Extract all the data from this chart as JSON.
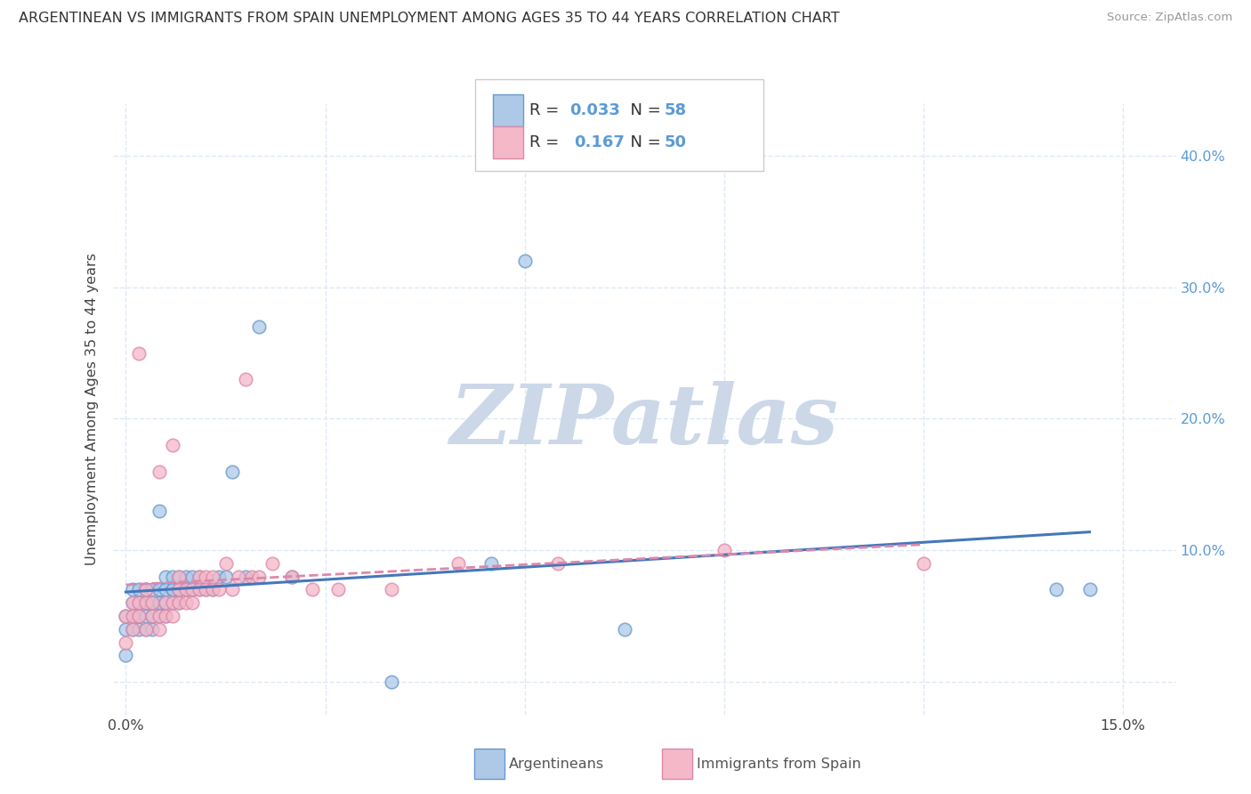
{
  "title": "ARGENTINEAN VS IMMIGRANTS FROM SPAIN UNEMPLOYMENT AMONG AGES 35 TO 44 YEARS CORRELATION CHART",
  "source": "Source: ZipAtlas.com",
  "ylabel": "Unemployment Among Ages 35 to 44 years",
  "xlim": [
    -0.002,
    0.158
  ],
  "ylim": [
    -0.025,
    0.44
  ],
  "xticks": [
    0.0,
    0.15
  ],
  "xtick_labels": [
    "0.0%",
    "15.0%"
  ],
  "yticks": [
    0.0,
    0.1,
    0.2,
    0.3,
    0.4
  ],
  "ytick_labels": [
    "",
    "10.0%",
    "20.0%",
    "30.0%",
    "40.0%"
  ],
  "grid_yticks": [
    0.0,
    0.1,
    0.2,
    0.3,
    0.4
  ],
  "grid_xticks": [
    0.0,
    0.03,
    0.06,
    0.09,
    0.12,
    0.15
  ],
  "argentineans_R": 0.033,
  "argentineans_N": 58,
  "spain_R": 0.167,
  "spain_N": 50,
  "arg_fill": "#aec9e8",
  "arg_edge": "#6699cc",
  "spain_fill": "#f4b8c8",
  "spain_edge": "#dd88aa",
  "trend_arg_color": "#4477bb",
  "trend_spain_color": "#dd88aa",
  "watermark": "ZIPatlas",
  "watermark_color": "#ccd8e8",
  "bg_color": "#ffffff",
  "grid_color": "#dde8f5",
  "label_blue": "#5b9bd5",
  "title_color": "#333333",
  "argentineans_x": [
    0.0,
    0.0,
    0.0,
    0.001,
    0.001,
    0.001,
    0.001,
    0.002,
    0.002,
    0.002,
    0.002,
    0.002,
    0.003,
    0.003,
    0.003,
    0.003,
    0.003,
    0.004,
    0.004,
    0.004,
    0.004,
    0.005,
    0.005,
    0.005,
    0.005,
    0.005,
    0.006,
    0.006,
    0.006,
    0.006,
    0.007,
    0.007,
    0.007,
    0.007,
    0.008,
    0.008,
    0.008,
    0.009,
    0.009,
    0.009,
    0.01,
    0.01,
    0.011,
    0.011,
    0.012,
    0.013,
    0.014,
    0.015,
    0.016,
    0.018,
    0.02,
    0.025,
    0.04,
    0.055,
    0.06,
    0.075,
    0.14,
    0.145
  ],
  "argentineans_y": [
    0.02,
    0.04,
    0.05,
    0.04,
    0.05,
    0.06,
    0.07,
    0.04,
    0.05,
    0.06,
    0.06,
    0.07,
    0.04,
    0.05,
    0.06,
    0.06,
    0.07,
    0.04,
    0.05,
    0.06,
    0.07,
    0.05,
    0.06,
    0.06,
    0.07,
    0.13,
    0.05,
    0.06,
    0.07,
    0.08,
    0.06,
    0.07,
    0.07,
    0.08,
    0.06,
    0.07,
    0.08,
    0.07,
    0.07,
    0.08,
    0.07,
    0.08,
    0.07,
    0.08,
    0.07,
    0.07,
    0.08,
    0.08,
    0.16,
    0.08,
    0.27,
    0.08,
    0.0,
    0.09,
    0.32,
    0.04,
    0.07,
    0.07
  ],
  "spain_x": [
    0.0,
    0.0,
    0.001,
    0.001,
    0.001,
    0.002,
    0.002,
    0.002,
    0.003,
    0.003,
    0.003,
    0.004,
    0.004,
    0.005,
    0.005,
    0.005,
    0.006,
    0.006,
    0.007,
    0.007,
    0.007,
    0.008,
    0.008,
    0.008,
    0.009,
    0.009,
    0.01,
    0.01,
    0.011,
    0.011,
    0.012,
    0.012,
    0.013,
    0.013,
    0.014,
    0.015,
    0.016,
    0.017,
    0.018,
    0.019,
    0.02,
    0.022,
    0.025,
    0.028,
    0.032,
    0.04,
    0.05,
    0.065,
    0.09,
    0.12
  ],
  "spain_y": [
    0.03,
    0.05,
    0.04,
    0.05,
    0.06,
    0.05,
    0.06,
    0.25,
    0.04,
    0.06,
    0.07,
    0.05,
    0.06,
    0.04,
    0.05,
    0.16,
    0.05,
    0.06,
    0.05,
    0.06,
    0.18,
    0.06,
    0.07,
    0.08,
    0.06,
    0.07,
    0.06,
    0.07,
    0.07,
    0.08,
    0.07,
    0.08,
    0.07,
    0.08,
    0.07,
    0.09,
    0.07,
    0.08,
    0.23,
    0.08,
    0.08,
    0.09,
    0.08,
    0.07,
    0.07,
    0.07,
    0.09,
    0.09,
    0.1,
    0.09
  ],
  "legend_label_arg": "Argentineans",
  "legend_label_spain": "Immigrants from Spain"
}
